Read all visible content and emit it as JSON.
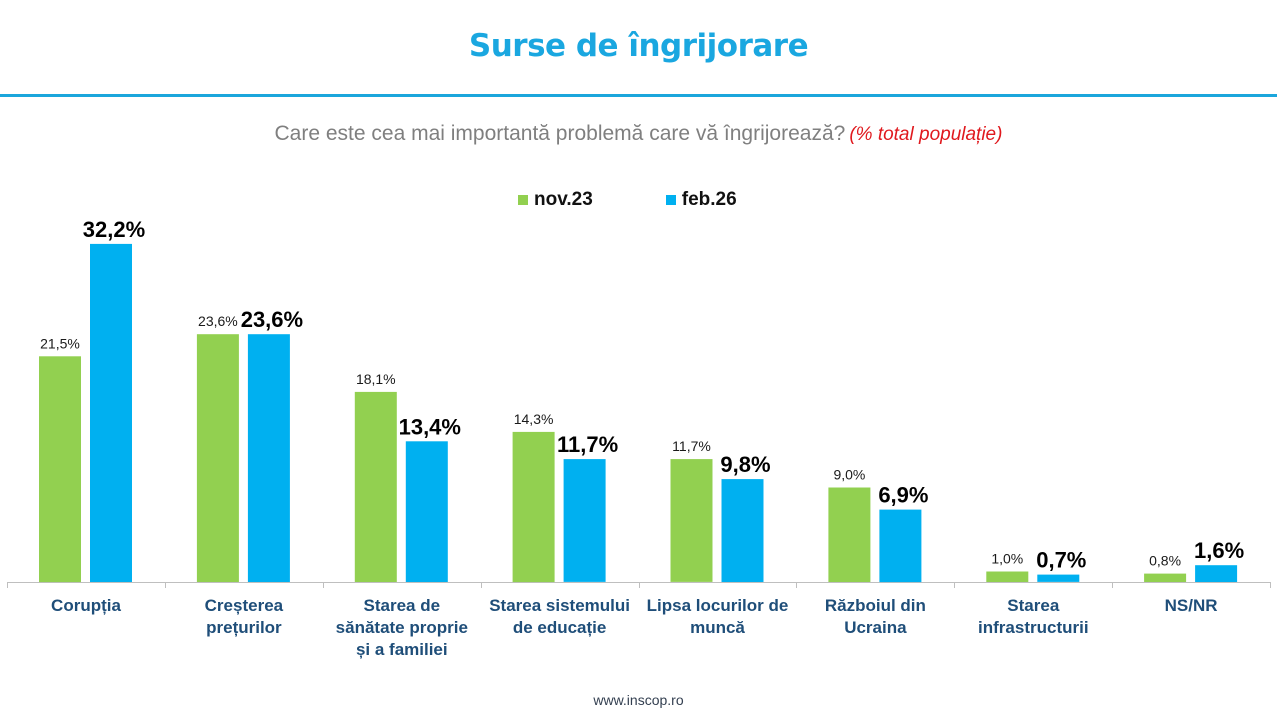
{
  "header": {
    "title": "Surse de îngrijorare",
    "subtitle": "Care este cea mai importantă problemă care vă îngrijorează?",
    "subtitle_note": "(% total populație)"
  },
  "footer": {
    "url_text": "www.inscop.ro"
  },
  "colors": {
    "nov23": "#92d050",
    "feb26": "#00b0f0",
    "accent": "#1ba6dc"
  },
  "chart_data": {
    "type": "bar",
    "title": "Surse de îngrijorare",
    "subtitle": "Care este cea mai importantă problemă care vă îngrijorează? (% total populație)",
    "xlabel": "",
    "ylabel": "",
    "ylim": [
      0,
      35
    ],
    "grid": false,
    "legend_position": "top-center",
    "categories": [
      "Corupția",
      "Creșterea\nprețurilor",
      "Starea de\nsănătate proprie\nși a familiei",
      "Starea sistemului\nde educație",
      "Lipsa locurilor de\nmuncă",
      "Războiul din\nUcraina",
      "Starea\ninfrastructurii",
      "NS/NR"
    ],
    "series": [
      {
        "name": "nov.23",
        "color": "#92d050",
        "values": [
          21.5,
          23.6,
          18.1,
          14.3,
          11.7,
          9.0,
          1.0,
          0.8
        ],
        "labels": [
          "21,5%",
          "23,6%",
          "18,1%",
          "14,3%",
          "11,7%",
          "9,0%",
          "1,0%",
          "0,8%"
        ]
      },
      {
        "name": "feb.26",
        "color": "#00b0f0",
        "values": [
          32.2,
          23.6,
          13.4,
          11.7,
          9.8,
          6.9,
          0.7,
          1.6
        ],
        "labels": [
          "32,2%",
          "23,6%",
          "13,4%",
          "11,7%",
          "9,8%",
          "6,9%",
          "0,7%",
          "1,6%"
        ]
      }
    ]
  }
}
